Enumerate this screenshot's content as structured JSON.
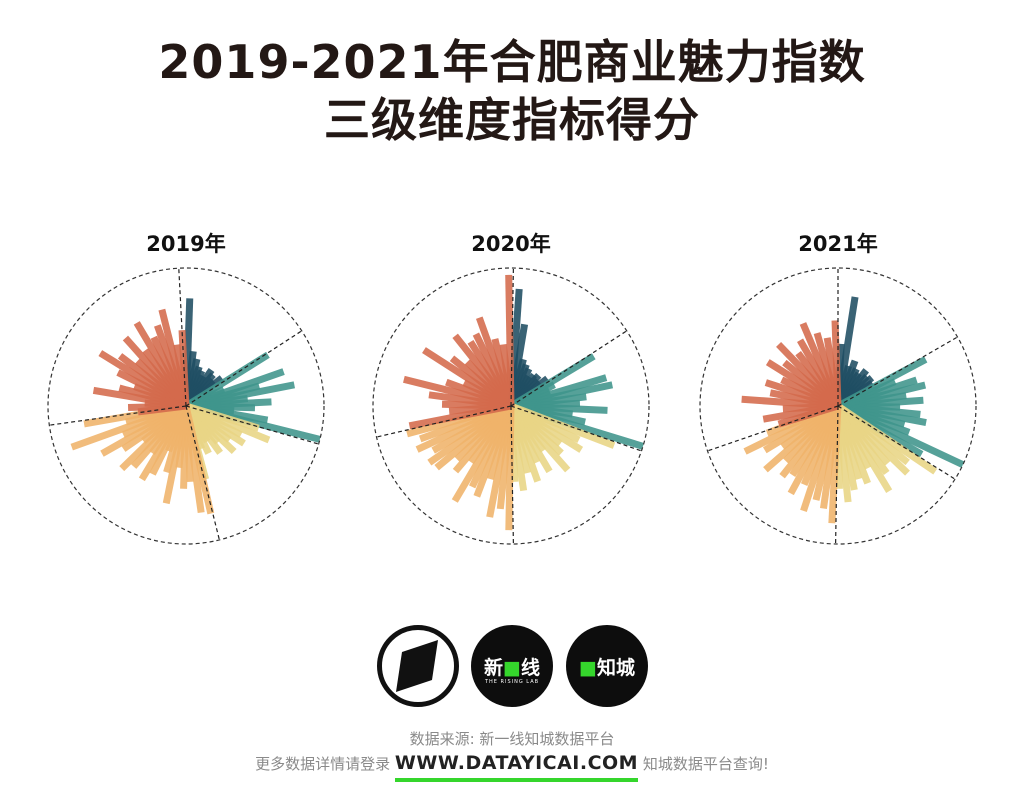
{
  "title": {
    "line1": "2019-2021年合肥商业魅力指数",
    "line2": "三级维度指标得分"
  },
  "charts": [
    {
      "year_label": "2019年"
    },
    {
      "year_label": "2020年"
    },
    {
      "year_label": "2021年"
    }
  ],
  "logos": {
    "logo2_left": "新",
    "logo2_right": "线",
    "logo2_sub": "THE RISING LAB",
    "logo3_text": "知城"
  },
  "footer": {
    "source": "数据来源: 新一线知城数据平台",
    "more_prefix": "更多数据详情请登录",
    "url": "WWW.DATAYICAI.COM",
    "more_suffix": "知城数据平台查询!"
  },
  "chart_data": [
    {
      "type": "radial-bar",
      "title": "2019年",
      "center": [
        186,
        406
      ],
      "radius": 138,
      "sector_dividers_deg": [
        -3,
        57,
        106,
        166,
        262
      ],
      "series": [
        {
          "name": "group-1",
          "color": "#1f4e63",
          "start_deg": 2,
          "end_deg": 52,
          "values": [
            0.78,
            0.4,
            0.35,
            0.3,
            0.28,
            0.25,
            0.32,
            0.3,
            0.27,
            0.33
          ]
        },
        {
          "name": "group-2",
          "color": "#3f958c",
          "start_deg": 58,
          "end_deg": 104,
          "values": [
            0.7,
            0.2,
            0.3,
            0.75,
            0.55,
            0.8,
            0.45,
            0.62,
            0.5,
            0.35,
            0.6,
            1.0
          ]
        },
        {
          "name": "group-3",
          "color": "#e9d585",
          "start_deg": 107,
          "end_deg": 165,
          "values": [
            0.55,
            0.65,
            0.45,
            0.5,
            0.4,
            0.48,
            0.35,
            0.42,
            0.3,
            0.38,
            0.33,
            0.55
          ]
        },
        {
          "name": "group-4",
          "color": "#f0b36a",
          "start_deg": 167,
          "end_deg": 260,
          "values": [
            0.8,
            0.78,
            0.55,
            0.6,
            0.45,
            0.72,
            0.5,
            0.35,
            0.55,
            0.62,
            0.42,
            0.58,
            0.65,
            0.4,
            0.55,
            0.7,
            0.5,
            0.88,
            0.45,
            0.75
          ]
        },
        {
          "name": "group-5",
          "color": "#d46a4c",
          "start_deg": 263,
          "end_deg": 357,
          "values": [
            0.35,
            0.42,
            0.3,
            0.68,
            0.5,
            0.4,
            0.55,
            0.73,
            0.6,
            0.48,
            0.66,
            0.5,
            0.7,
            0.55,
            0.62,
            0.72,
            0.45,
            0.55
          ]
        }
      ]
    },
    {
      "type": "radial-bar",
      "title": "2020年",
      "center": [
        511,
        406
      ],
      "radius": 138,
      "sector_dividers_deg": [
        1,
        57,
        109,
        179,
        257
      ],
      "series": [
        {
          "name": "group-1",
          "color": "#1f4e63",
          "start_deg": 4,
          "end_deg": 53,
          "values": [
            0.85,
            0.6,
            0.35,
            0.32,
            0.3,
            0.25,
            0.28,
            0.3,
            0.27,
            0.33
          ]
        },
        {
          "name": "group-2",
          "color": "#3f958c",
          "start_deg": 59,
          "end_deg": 107,
          "values": [
            0.7,
            0.35,
            0.3,
            0.72,
            0.75,
            0.55,
            0.5,
            0.7,
            0.45,
            0.55,
            1.0
          ]
        },
        {
          "name": "group-3",
          "color": "#e9d585",
          "start_deg": 111,
          "end_deg": 177,
          "values": [
            0.8,
            0.55,
            0.6,
            0.45,
            0.5,
            0.62,
            0.4,
            0.55,
            0.45,
            0.58,
            0.5,
            0.62,
            0.55
          ]
        },
        {
          "name": "group-4",
          "color": "#f0b36a",
          "start_deg": 181,
          "end_deg": 255,
          "values": [
            0.9,
            0.75,
            0.82,
            0.55,
            0.7,
            0.65,
            0.8,
            0.5,
            0.62,
            0.55,
            0.7,
            0.72,
            0.65,
            0.75,
            0.7,
            0.78
          ]
        },
        {
          "name": "group-5",
          "color": "#d46a4c",
          "start_deg": 259,
          "end_deg": 359,
          "values": [
            0.75,
            0.45,
            0.5,
            0.6,
            0.8,
            0.5,
            0.38,
            0.75,
            0.55,
            0.45,
            0.65,
            0.55,
            0.58,
            0.68,
            0.5,
            0.45,
            0.95
          ]
        }
      ]
    },
    {
      "type": "radial-bar",
      "title": "2021年",
      "center": [
        838,
        406
      ],
      "radius": 138,
      "sector_dividers_deg": [
        0,
        60,
        122,
        181,
        251
      ],
      "series": [
        {
          "name": "group-1",
          "color": "#1f4e63",
          "start_deg": 3,
          "end_deg": 56,
          "values": [
            0.45,
            0.8,
            0.3,
            0.35,
            0.3,
            0.28,
            0.33,
            0.3,
            0.32,
            0.3
          ]
        },
        {
          "name": "group-2",
          "color": "#3f958c",
          "start_deg": 62,
          "end_deg": 120,
          "values": [
            0.72,
            0.45,
            0.6,
            0.65,
            0.5,
            0.62,
            0.45,
            0.6,
            0.65,
            0.5,
            0.55,
            1.0,
            0.7
          ]
        },
        {
          "name": "group-3",
          "color": "#e9d585",
          "start_deg": 124,
          "end_deg": 179,
          "values": [
            0.85,
            0.65,
            0.7,
            0.55,
            0.6,
            0.72,
            0.5,
            0.6,
            0.55,
            0.62,
            0.7,
            0.6
          ]
        },
        {
          "name": "group-4",
          "color": "#f0b36a",
          "start_deg": 183,
          "end_deg": 249,
          "values": [
            0.85,
            0.75,
            0.7,
            0.8,
            0.62,
            0.72,
            0.6,
            0.65,
            0.55,
            0.7,
            0.5,
            0.62,
            0.75,
            0.55
          ]
        },
        {
          "name": "group-5",
          "color": "#d46a4c",
          "start_deg": 253,
          "end_deg": 358,
          "values": [
            0.45,
            0.55,
            0.4,
            0.7,
            0.5,
            0.55,
            0.45,
            0.6,
            0.5,
            0.62,
            0.48,
            0.55,
            0.65,
            0.55,
            0.5,
            0.62
          ]
        }
      ]
    }
  ]
}
